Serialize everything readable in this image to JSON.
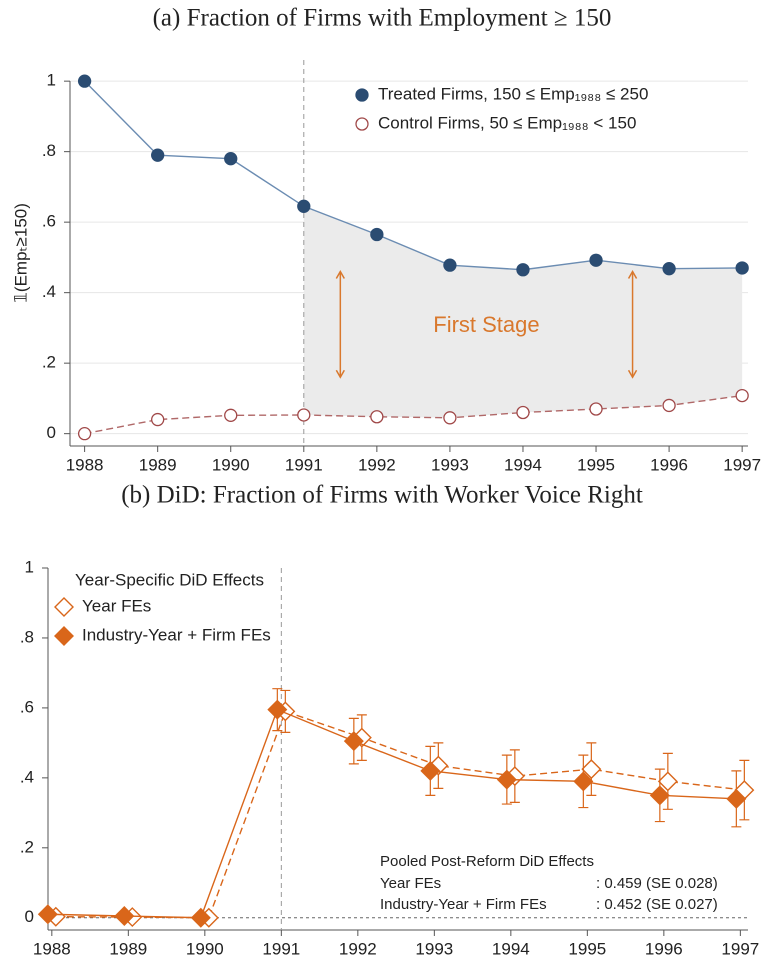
{
  "chart_data": [
    {
      "type": "line",
      "title": "(a) Fraction of Firms with Employment ≥ 150",
      "y_label": "𝟙(Empₜ≥150)",
      "x": [
        1988,
        1989,
        1990,
        1991,
        1992,
        1993,
        1994,
        1995,
        1996,
        1997
      ],
      "series": [
        {
          "name": "Treated Firms, 150 ≤ Emp₁₉₈₈ ≤ 250",
          "color": "#2b4c72",
          "line_color": "#6b8cb2",
          "marker": "filled-circle",
          "values": [
            1.0,
            0.79,
            0.78,
            0.645,
            0.565,
            0.478,
            0.465,
            0.492,
            0.468,
            0.47
          ]
        },
        {
          "name": "Control Firms,  50 ≤ Emp₁₉₈₈ < 150",
          "color": "#a04848",
          "line_color": "#b06868",
          "marker": "hollow-circle",
          "dashed": true,
          "values": [
            0.0,
            0.04,
            0.052,
            0.053,
            0.048,
            0.045,
            0.06,
            0.07,
            0.08,
            0.108
          ]
        }
      ],
      "annotation": "First Stage",
      "annotation_color": "#d9782d",
      "xlim": [
        1987.8,
        1997.08
      ],
      "ylim": [
        -0.035,
        1.06
      ],
      "xticks": [
        1988,
        1989,
        1990,
        1991,
        1992,
        1993,
        1994,
        1995,
        1996,
        1997
      ],
      "yticks": [
        0,
        {
          "value": 0.2,
          "label": ".2"
        },
        {
          "value": 0.4,
          "label": ".4"
        },
        {
          "value": 0.6,
          "label": ".6"
        },
        {
          "value": 0.8,
          "label": ".8"
        },
        1
      ],
      "grid": true,
      "vline": 1991,
      "shade_from": 1991,
      "legend": "top-right"
    },
    {
      "type": "errorbar",
      "title": "(b) DiD: Fraction of Firms with Worker Voice Right",
      "legend_title": "Year-Specific DiD Effects",
      "x": [
        1988,
        1989,
        1990,
        1991,
        1992,
        1993,
        1994,
        1995,
        1996,
        1997
      ],
      "series": [
        {
          "name": "Year FEs",
          "color": "#d9661a",
          "marker": "hollow-diamond",
          "dashed": true,
          "values": [
            0.003,
            0.002,
            0.0,
            0.59,
            0.515,
            0.435,
            0.405,
            0.425,
            0.39,
            0.365
          ],
          "errors": [
            0,
            0,
            0,
            0.06,
            0.065,
            0.065,
            0.075,
            0.075,
            0.08,
            0.085
          ]
        },
        {
          "name": "Industry-Year + Firm FEs",
          "color": "#d9661a",
          "marker": "filled-diamond",
          "values": [
            0.01,
            0.005,
            0.0,
            0.595,
            0.505,
            0.42,
            0.395,
            0.39,
            0.35,
            0.34
          ],
          "errors": [
            0,
            0,
            0,
            0.06,
            0.065,
            0.07,
            0.07,
            0.075,
            0.075,
            0.08
          ]
        }
      ],
      "note": {
        "title": "Pooled Post-Reform DiD Effects",
        "rows": [
          [
            "Year FEs",
            ": 0.459 (SE 0.028)"
          ],
          [
            "Industry-Year + Firm FEs",
            ": 0.452 (SE 0.027)"
          ]
        ]
      },
      "xlim": [
        1987.95,
        1997.1
      ],
      "ylim": [
        -0.035,
        1.0
      ],
      "xticks": [
        1988,
        1989,
        1990,
        1991,
        1992,
        1993,
        1994,
        1995,
        1996,
        1997
      ],
      "yticks": [
        0,
        {
          "value": 0.2,
          "label": ".2"
        },
        {
          "value": 0.4,
          "label": ".4"
        },
        {
          "value": 0.6,
          "label": ".6"
        },
        {
          "value": 0.8,
          "label": ".8"
        },
        1
      ],
      "grid": false,
      "vline": 1991,
      "hline": 0,
      "legend": "top-left"
    }
  ]
}
